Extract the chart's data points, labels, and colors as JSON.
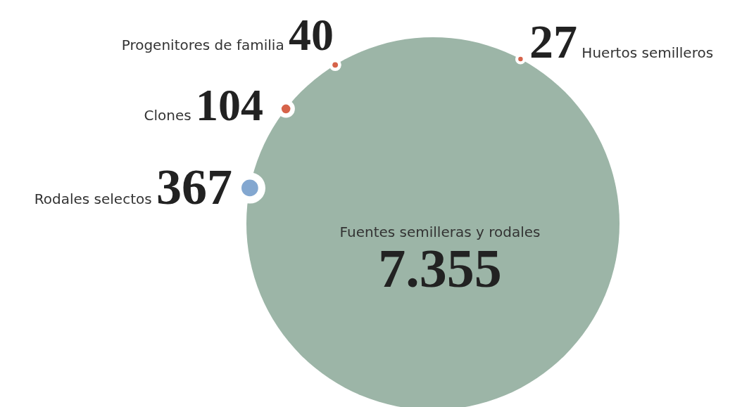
{
  "chart_data": {
    "type": "other",
    "categories": [
      "Fuentes semilleras y rodales",
      "Rodales selectos",
      "Clones",
      "Progenitores de familia",
      "Huertos semilleros"
    ],
    "values": [
      7355,
      367,
      104,
      40,
      27
    ],
    "value_labels": [
      "7.355",
      "367",
      "104",
      "40",
      "27"
    ],
    "colors": [
      "#9cb5a7",
      "#83a7d0",
      "#d6634a",
      "#d6634a",
      "#d6634a"
    ]
  }
}
